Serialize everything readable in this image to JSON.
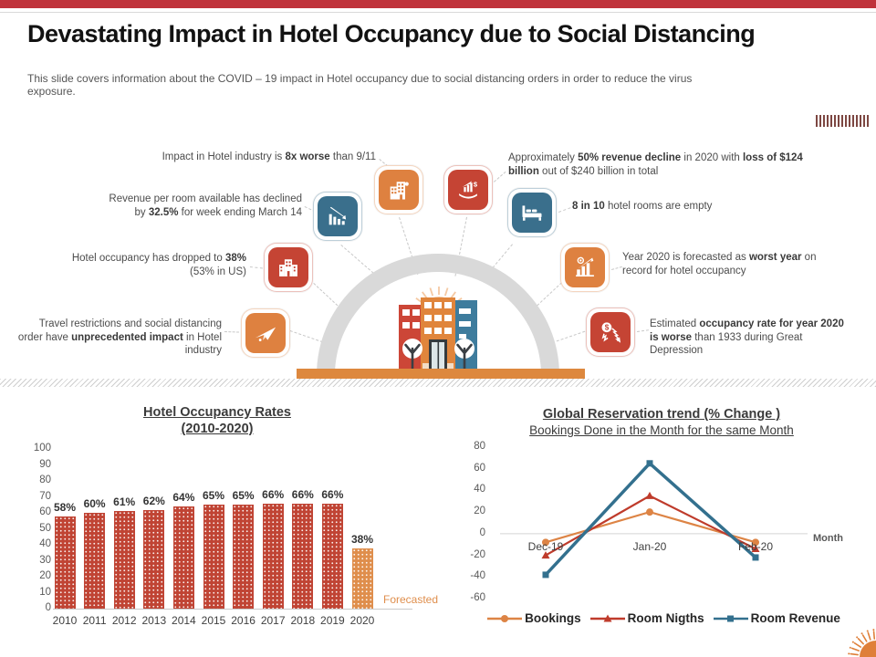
{
  "header": {
    "title": "Devastating Impact in Hotel Occupancy due to Social Distancing",
    "subtitle": "This slide covers information about the COVID – 19 impact in Hotel occupancy due to  social distancing orders in order to reduce the virus exposure."
  },
  "decor": {
    "top_bar_color": "#c0333b",
    "arch_color": "#d9d9d9",
    "ground_color": "#dd883e",
    "barcode_color": "#7d4742",
    "barcode_bar_count": 15,
    "sun_color": "#df7f39",
    "building_sun_color": "#f5c9a3",
    "building_red": "#cc4637",
    "building_orange": "#e0853c",
    "building_blue": "#3e7c9d"
  },
  "infographic": {
    "callouts": [
      {
        "name": "impact-911",
        "segments": [
          {
            "text": "Impact  in  Hotel  industry is "
          },
          {
            "text": "8x worse",
            "bold": true
          },
          {
            "text": " than 9/11"
          }
        ]
      },
      {
        "name": "revenue-per-room",
        "segments": [
          {
            "text": "Revenue per room available  has declined by "
          },
          {
            "text": "32.5%",
            "bold": true
          },
          {
            "text": "  for week ending  March  14"
          }
        ]
      },
      {
        "name": "occupancy-dropped",
        "segments": [
          {
            "text": "Hotel  occupancy has dropped  to "
          },
          {
            "text": "38%",
            "bold": true
          },
          {
            "text": " (53% in  US)"
          }
        ]
      },
      {
        "name": "travel-restrictions",
        "segments": [
          {
            "text": "Travel restrictions and social  distancing  order have "
          },
          {
            "text": "unprecedented impact",
            "bold": true
          },
          {
            "text": " in Hotel  industry"
          }
        ]
      },
      {
        "name": "revenue-decline-2020",
        "segments": [
          {
            "text": "Approximately  "
          },
          {
            "text": "50%  revenue decline",
            "bold": true
          },
          {
            "text": " in 2020  with "
          },
          {
            "text": "loss of $124  billion",
            "bold": true
          },
          {
            "text": " out of $240  billion  in  total"
          }
        ]
      },
      {
        "name": "rooms-empty",
        "segments": [
          {
            "text": "8 in 10",
            "bold": true
          },
          {
            "text": " hotel  rooms  are empty"
          }
        ]
      },
      {
        "name": "worst-year",
        "segments": [
          {
            "text": "Year 2020  is  forecasted  as "
          },
          {
            "text": "worst year",
            "bold": true
          },
          {
            "text": " on record for hotel  occupancy"
          }
        ]
      },
      {
        "name": "great-depression",
        "segments": [
          {
            "text": "Estimated  "
          },
          {
            "text": "occupancy rate for year 2020 is worse",
            "bold": true
          },
          {
            "text": " than 1933  during  Great Depression"
          }
        ]
      }
    ],
    "icons": [
      {
        "name": "declining-chart-icon",
        "color": "#3a6f8c"
      },
      {
        "name": "hotel-building-icon",
        "color": "#de8140"
      },
      {
        "name": "money-hand-icon",
        "color": "#c54434"
      },
      {
        "name": "bed-icon",
        "color": "#3a6f8c"
      },
      {
        "name": "city-building-icon",
        "color": "#c54434"
      },
      {
        "name": "growth-eye-icon",
        "color": "#de8140"
      },
      {
        "name": "plane-icon",
        "color": "#de8140"
      },
      {
        "name": "dollar-decline-icon",
        "color": "#c54434"
      }
    ]
  },
  "chart_data": [
    {
      "type": "bar",
      "title": "Hotel Occupancy  Rates",
      "title_line2": "(2010-2020)",
      "categories": [
        "2010",
        "2011",
        "2012",
        "2013",
        "2014",
        "2015",
        "2016",
        "2017",
        "2018",
        "2019",
        "2020"
      ],
      "values": [
        58,
        60,
        61,
        62,
        64,
        65,
        65,
        66,
        66,
        66,
        38
      ],
      "data_labels": [
        "58%",
        "60%",
        "61%",
        "62%",
        "64%",
        "65%",
        "65%",
        "66%",
        "66%",
        "66%",
        "38%"
      ],
      "ylim": [
        0,
        100
      ],
      "yticks": [
        100,
        90,
        80,
        70,
        60,
        50,
        40,
        30,
        20,
        10,
        0
      ],
      "grid": false,
      "bar_color": "#c04434",
      "forecast_bar_color": "#df8e4c",
      "forecast_index": 10,
      "forecast_label": "Forecasted",
      "forecast_label_color": "#df8e4c"
    },
    {
      "type": "line",
      "title": "Global Reservation trend  (% Change )",
      "subtitle": "Bookings Done in the Month for the same Month",
      "x": [
        "Dec-19",
        "Jan-20",
        "Feb-20"
      ],
      "xlabel": "Month",
      "ylim": [
        -60,
        80
      ],
      "yticks": [
        80,
        60,
        40,
        20,
        0,
        -20,
        -40,
        -60
      ],
      "grid": false,
      "legend_position": "bottom",
      "series": [
        {
          "name": "Bookings",
          "color": "#dd8445",
          "marker": "circle",
          "values": [
            -8,
            20,
            -8
          ]
        },
        {
          "name": "Room Nigths",
          "color": "#bf3b2b",
          "marker": "triangle",
          "values": [
            -20,
            35,
            -14
          ]
        },
        {
          "name": "Room Revenue",
          "color": "#33708e",
          "marker": "square",
          "values": [
            -38,
            65,
            -22
          ]
        }
      ]
    }
  ]
}
